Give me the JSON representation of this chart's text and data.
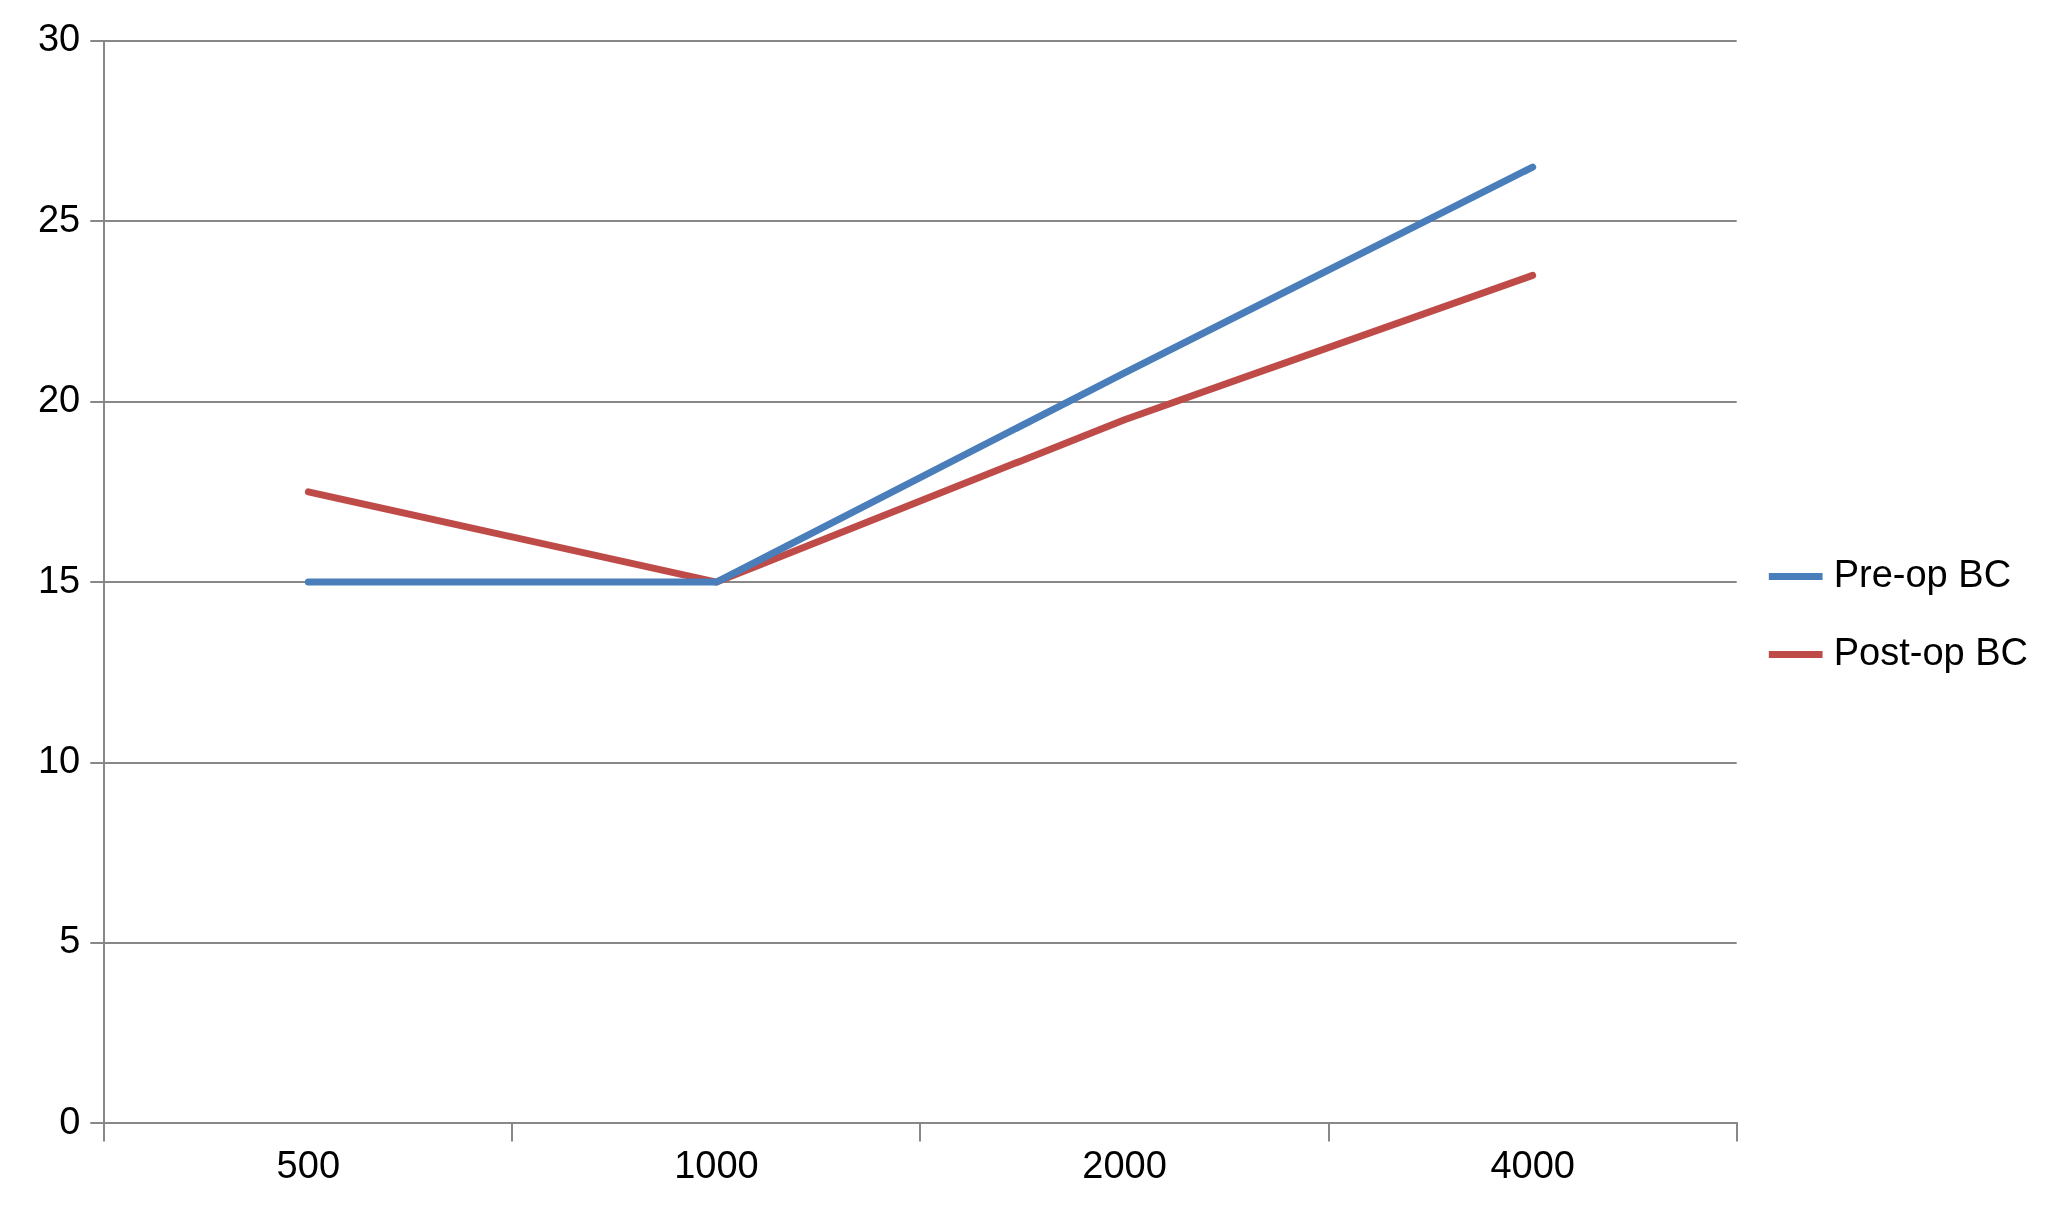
{
  "chart_data": {
    "type": "line",
    "categories": [
      "500",
      "1000",
      "2000",
      "4000"
    ],
    "series": [
      {
        "name": "Pre-op BC",
        "color": "#4a7ebb",
        "values": [
          15,
          15,
          20.8,
          26.5
        ]
      },
      {
        "name": "Post-op BC",
        "color": "#be4b48",
        "values": [
          17.5,
          15,
          19.5,
          23.5
        ]
      }
    ],
    "ylim": [
      0,
      30
    ],
    "yticks": [
      0,
      5,
      10,
      15,
      20,
      25,
      30
    ],
    "grid": "y",
    "legend": "right",
    "marker": "none",
    "line_style": "solid"
  }
}
